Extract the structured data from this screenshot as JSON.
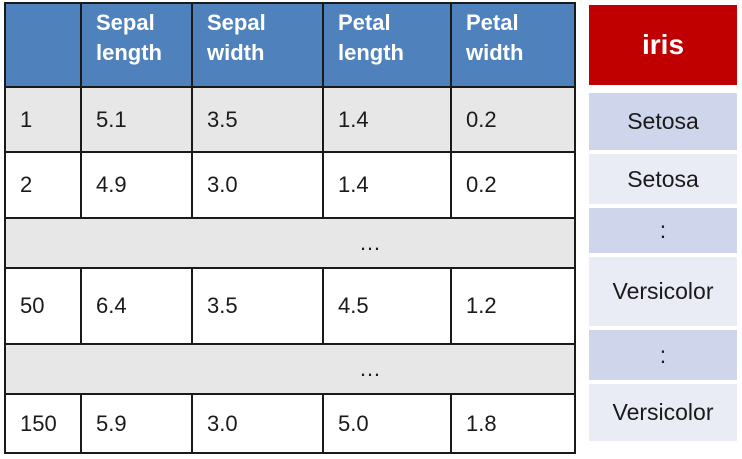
{
  "table": {
    "headers": [
      {
        "line1": "",
        "line2": ""
      },
      {
        "line1": "Sepal",
        "line2": "length"
      },
      {
        "line1": "Sepal",
        "line2": "width"
      },
      {
        "line1": "Petal",
        "line2": "length"
      },
      {
        "line1": "Petal",
        "line2": "width"
      }
    ],
    "rows": [
      {
        "kind": "data",
        "cells": [
          "1",
          "5.1",
          "3.5",
          "1.4",
          "0.2"
        ]
      },
      {
        "kind": "data",
        "cells": [
          "2",
          "4.9",
          "3.0",
          "1.4",
          "0.2"
        ]
      },
      {
        "kind": "ellipsis",
        "text": "…"
      },
      {
        "kind": "data",
        "cells": [
          "50",
          "6.4",
          "3.5",
          "4.5",
          "1.2"
        ]
      },
      {
        "kind": "ellipsis",
        "text": "…"
      },
      {
        "kind": "data",
        "cells": [
          "150",
          "5.9",
          "3.0",
          "5.0",
          "1.8"
        ]
      }
    ]
  },
  "species": {
    "title": "iris",
    "items": [
      "Setosa",
      "Setosa",
      ":",
      "Versicolor",
      ":",
      "Versicolor"
    ]
  },
  "colors": {
    "header_blue": "#4f81bd",
    "title_red": "#c00000",
    "row_gray": "#e7e7e7",
    "label_blue_dark": "#cfd5ea",
    "label_blue_light": "#e9ebf5"
  }
}
